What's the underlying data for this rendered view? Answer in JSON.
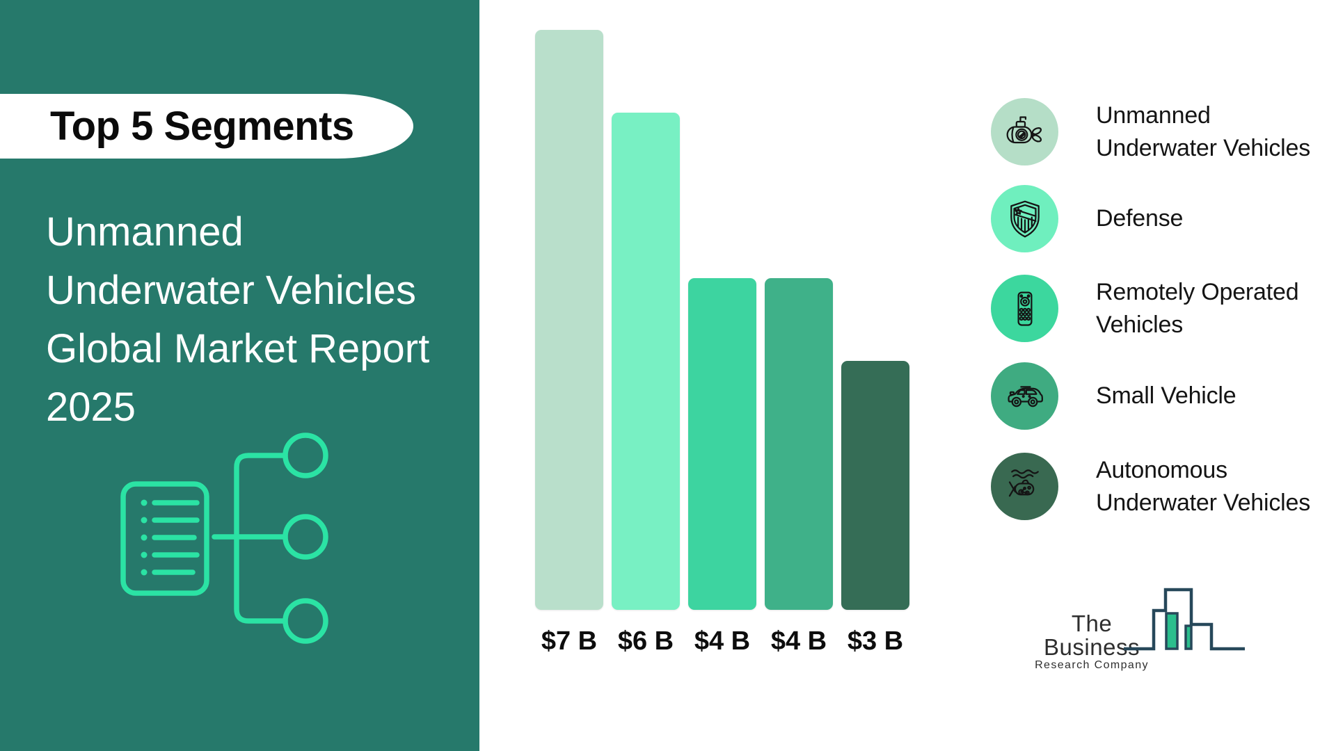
{
  "page": {
    "background": "#FFFFFF"
  },
  "sidebar": {
    "background": "#26796B",
    "banner": {
      "label": "Top 5 Segments",
      "background": "#FFFFFF",
      "text_color": "#0B0B0B"
    },
    "title": "Unmanned\nUnderwater Vehicles\nGlobal Market Report\n2025",
    "title_color": "#FFFFFF",
    "icon": "document-flowchart-icon",
    "icon_color": "#2BE3A4"
  },
  "chart_data": {
    "type": "bar",
    "title": "Unmanned Underwater Vehicles Global Market Report 2025",
    "subtitle": "Top 5 Segments",
    "categories": [
      "Unmanned Underwater Vehicles",
      "Defense",
      "Remotely Operated Vehicles",
      "Small Vehicle",
      "Autonomous Underwater Vehicles"
    ],
    "values": [
      7,
      6,
      4,
      4,
      3
    ],
    "value_labels": [
      "$7 B",
      "$6 B",
      "$4 B",
      "$4 B",
      "$3 B"
    ],
    "unit": "billions of USD",
    "bar_colors": [
      "#B9DFCB",
      "#78F0C3",
      "#3DD4A0",
      "#3FB189",
      "#356D56"
    ],
    "axes": "none",
    "grid": false,
    "legend_position": "right",
    "ylim": [
      0,
      7
    ]
  },
  "legend": {
    "label_color": "#141414",
    "icon_stroke": "#151515",
    "items": [
      {
        "label": "Unmanned\nUnderwater Vehicles",
        "icon": "submarine-icon",
        "color": "#B5DEC7"
      },
      {
        "label": "Defense",
        "icon": "shield-icon",
        "color": "#6FEFBE"
      },
      {
        "label": "Remotely Operated\nVehicles",
        "icon": "remote-control-icon",
        "color": "#3CD79E"
      },
      {
        "label": "Small Vehicle",
        "icon": "car-icon",
        "color": "#3FAB81"
      },
      {
        "label": "Autonomous\nUnderwater Vehicles",
        "icon": "auv-fish-icon",
        "color": "#396951"
      }
    ]
  },
  "logo": {
    "line1": "The Business",
    "line2": "Research Company",
    "text_color": "#2E2E2E",
    "outline_color": "#27485A",
    "fill_color": "#2BBE8D"
  }
}
